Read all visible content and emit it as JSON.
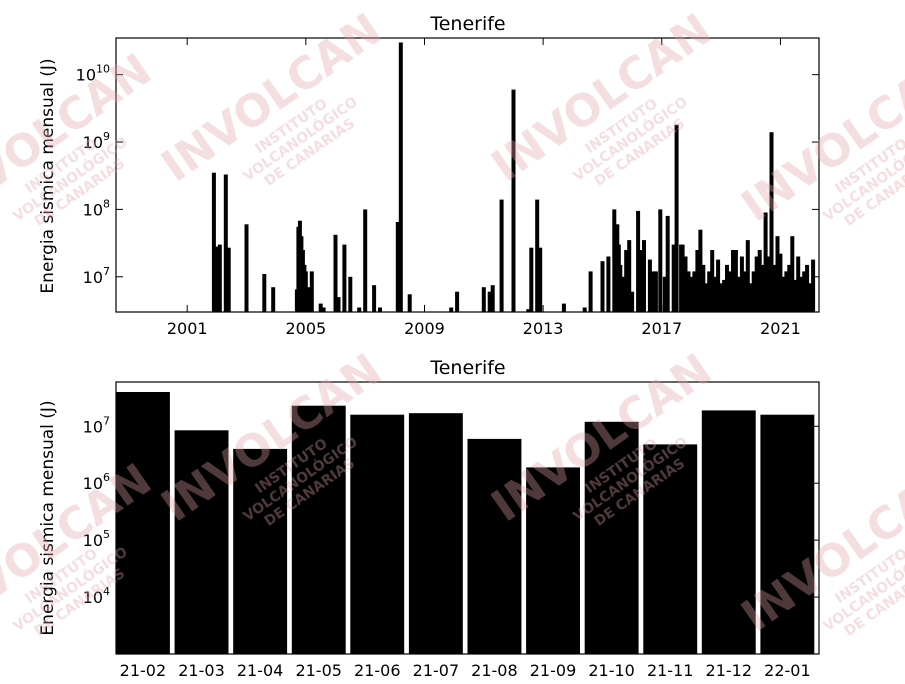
{
  "watermark": {
    "brand": "INVOLCAN",
    "lines": [
      "INSTITUTO",
      "VOLCANOLÓGICO",
      "DE CANARIAS"
    ],
    "color": "#e2a3a8"
  },
  "chart_data": [
    {
      "type": "bar",
      "title": "Tenerife",
      "xlabel": "",
      "ylabel": "Energia sismica mensual (J)",
      "yscale": "log",
      "xlim": [
        1998.6,
        2022.3
      ],
      "ylim": [
        3000000,
        35000000000
      ],
      "xticks": [
        2001,
        2005,
        2009,
        2013,
        2017,
        2021
      ],
      "xtick_labels": [
        "2001",
        "2005",
        "2009",
        "2013",
        "2017",
        "2021"
      ],
      "yticks": [
        10000000,
        100000000,
        1000000000,
        10000000000
      ],
      "ytick_labels": [
        [
          "10",
          "7"
        ],
        [
          "10",
          "8"
        ],
        [
          "10",
          "9"
        ],
        [
          "10",
          "10"
        ]
      ],
      "bar_color": "#000000",
      "x": [
        2001.9,
        2002.0,
        2002.1,
        2002.3,
        2002.4,
        2003.0,
        2003.6,
        2003.9,
        2004.7,
        2004.75,
        2004.8,
        2004.85,
        2004.9,
        2004.95,
        2005.0,
        2005.1,
        2005.2,
        2005.5,
        2005.6,
        2006.0,
        2006.1,
        2006.3,
        2006.5,
        2006.8,
        2007.0,
        2007.3,
        2007.5,
        2008.1,
        2008.2,
        2008.5,
        2009.9,
        2010.1,
        2011.0,
        2011.2,
        2011.3,
        2011.6,
        2012.0,
        2012.5,
        2012.6,
        2012.8,
        2012.9,
        2013.7,
        2014.4,
        2014.6,
        2015.0,
        2015.2,
        2015.4,
        2015.5,
        2015.55,
        2015.6,
        2015.7,
        2015.8,
        2015.9,
        2016.0,
        2016.2,
        2016.3,
        2016.4,
        2016.6,
        2016.7,
        2016.8,
        2016.95,
        2017.1,
        2017.2,
        2017.4,
        2017.5,
        2017.65,
        2017.7,
        2017.8,
        2017.9,
        2018.0,
        2018.1,
        2018.2,
        2018.3,
        2018.4,
        2018.5,
        2018.6,
        2018.7,
        2018.8,
        2018.9,
        2019.0,
        2019.1,
        2019.2,
        2019.3,
        2019.4,
        2019.5,
        2019.6,
        2019.7,
        2019.8,
        2019.9,
        2020.0,
        2020.1,
        2020.2,
        2020.3,
        2020.4,
        2020.5,
        2020.6,
        2020.7,
        2020.8,
        2020.9,
        2021.0,
        2021.1,
        2021.2,
        2021.3,
        2021.4,
        2021.5,
        2021.6,
        2021.7,
        2021.8,
        2021.9,
        2022.0,
        2022.1
      ],
      "values": [
        350000000,
        28000000,
        30000000,
        330000000,
        27000000,
        60000000,
        11000000,
        7000000,
        6500000,
        55000000,
        68000000,
        40000000,
        25000000,
        15000000,
        12000000,
        7000000,
        12000000,
        4000000,
        3500000,
        42000000,
        5000000,
        30000000,
        10000000,
        3500000,
        100000000,
        7500000,
        3500000,
        65000000,
        30000000000,
        5500000,
        3500000,
        6000000,
        7000000,
        6000000,
        7500000,
        140000000,
        6000000000,
        3300000,
        27000000,
        140000000,
        27000000,
        4000000,
        3500000,
        12000000,
        17000000,
        20000000,
        100000000,
        60000000,
        30000000,
        15000000,
        10000000,
        25000000,
        35000000,
        6000000,
        95000000,
        25000000,
        35000000,
        18000000,
        12000000,
        12000000,
        100000000,
        10000000,
        80000000,
        30000000,
        1800000000,
        30000000,
        30000000,
        20000000,
        12000000,
        10000000,
        12000000,
        25000000,
        50000000,
        15000000,
        8000000,
        12000000,
        25000000,
        10000000,
        18000000,
        8000000,
        9000000,
        15000000,
        12000000,
        25000000,
        25000000,
        10000000,
        20000000,
        12000000,
        35000000,
        8000000,
        12000000,
        20000000,
        25000000,
        15000000,
        90000000,
        20000000,
        1400000000,
        15000000,
        40000000,
        22000000,
        10000000,
        12000000,
        15000000,
        40000000,
        9000000,
        20000000,
        10000000,
        12000000,
        15000000,
        8000000,
        18000000
      ]
    },
    {
      "type": "bar",
      "title": "Tenerife",
      "xlabel": "",
      "ylabel": "Energia sismica mensual (J)",
      "yscale": "log",
      "ylim": [
        1000,
        60000000
      ],
      "yticks": [
        10000,
        100000,
        1000000,
        10000000
      ],
      "ytick_labels": [
        [
          "10",
          "4"
        ],
        [
          "10",
          "5"
        ],
        [
          "10",
          "6"
        ],
        [
          "10",
          "7"
        ]
      ],
      "bar_color": "#000000",
      "categories": [
        "21-02",
        "21-03",
        "21-04",
        "21-05",
        "21-06",
        "21-07",
        "21-08",
        "21-09",
        "21-10",
        "21-11",
        "21-12",
        "22-01"
      ],
      "values": [
        40000000,
        8500000,
        4000000,
        23000000,
        16000000,
        17000000,
        6000000,
        1900000,
        12000000,
        4800000,
        19000000,
        16000000
      ]
    }
  ]
}
